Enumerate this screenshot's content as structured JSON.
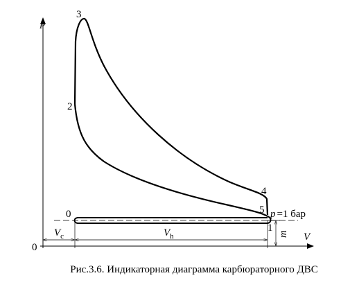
{
  "axes": {
    "y_label": "p",
    "x_label": "V",
    "origin": "0"
  },
  "points": {
    "p3": "3",
    "p2": "2",
    "p4": "4",
    "p5": "5",
    "p0": "0",
    "p1": "1"
  },
  "atmosphere": {
    "symbol": "p",
    "text": "=1 бар"
  },
  "dimensions": {
    "vc": {
      "main": "V",
      "sub": "c"
    },
    "vh": {
      "main": "V",
      "sub": "h"
    },
    "m": "m"
  },
  "caption": "Рис.3.6. Индикаторная диаграмма карбюраторного ДВС"
}
